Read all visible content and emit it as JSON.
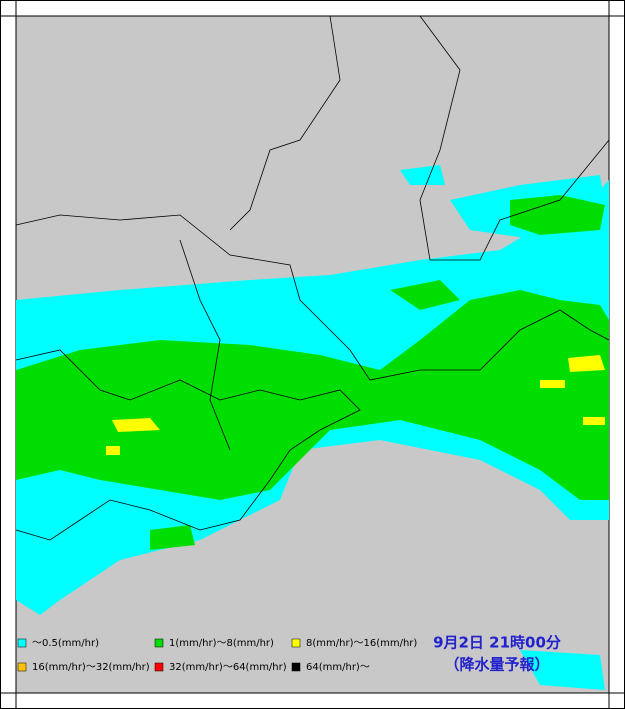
{
  "legend": [
    {
      "label": "～0.5(mm/hr)",
      "color": "#00ffff"
    },
    {
      "label": "1(mm/hr)～8(mm/hr)",
      "color": "#00dd00"
    },
    {
      "label": "8(mm/hr)～16(mm/hr)",
      "color": "#ffff00"
    },
    {
      "label": "16(mm/hr)～32(mm/hr)",
      "color": "#ffc000"
    },
    {
      "label": "32(mm/hr)～64(mm/hr)",
      "color": "#ff0000"
    },
    {
      "label": "64(mm/hr)～",
      "color": "#000000"
    }
  ],
  "timestamp": "9月2日 21時00分",
  "product": "（降水量予報）"
}
